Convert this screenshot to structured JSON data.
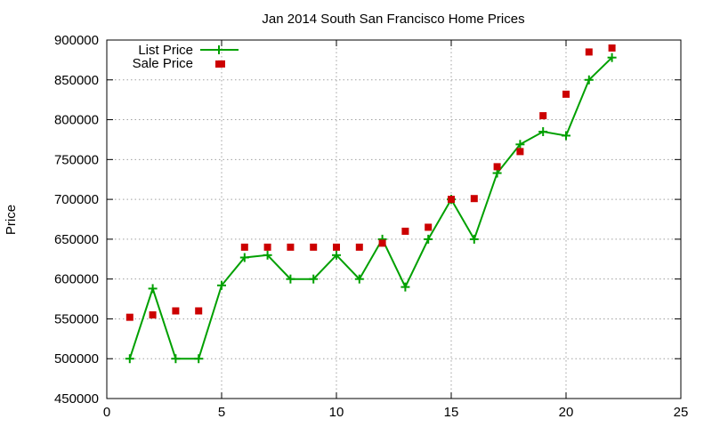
{
  "chart_data": {
    "type": "line",
    "title": "Jan 2014 South San Francisco Home Prices",
    "xlabel": "",
    "ylabel": "Price",
    "xlim": [
      0,
      25
    ],
    "ylim": [
      450000,
      900000
    ],
    "xticks": [
      0,
      5,
      10,
      15,
      20,
      25
    ],
    "yticks": [
      450000,
      500000,
      550000,
      600000,
      650000,
      700000,
      750000,
      800000,
      850000,
      900000
    ],
    "grid": true,
    "legend": "top-left",
    "series": [
      {
        "name": "List Price",
        "style": "line-plus",
        "color": "#00a000",
        "x": [
          1,
          2,
          3,
          4,
          5,
          6,
          7,
          8,
          9,
          10,
          11,
          12,
          13,
          14,
          15,
          16,
          17,
          18,
          19,
          20,
          21,
          22
        ],
        "y": [
          500000,
          588000,
          500000,
          500000,
          592000,
          627000,
          630000,
          600000,
          600000,
          630000,
          600000,
          650000,
          590000,
          650000,
          700000,
          650000,
          733000,
          769000,
          785000,
          780000,
          850000,
          878000
        ]
      },
      {
        "name": "Sale Price",
        "style": "square-points",
        "color": "#cc0000",
        "x": [
          1,
          2,
          3,
          4,
          5,
          6,
          7,
          8,
          9,
          10,
          11,
          12,
          13,
          14,
          15,
          16,
          17,
          18,
          19,
          20,
          21,
          22
        ],
        "y": [
          552000,
          555000,
          560000,
          560000,
          870000,
          640000,
          640000,
          640000,
          640000,
          640000,
          640000,
          645000,
          660000,
          665000,
          700000,
          701000,
          741000,
          760000,
          805000,
          832000,
          885000,
          890000
        ]
      }
    ]
  }
}
